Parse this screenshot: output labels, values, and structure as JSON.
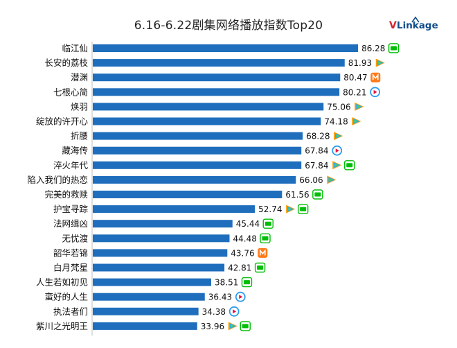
{
  "chart_data": {
    "type": "bar",
    "orientation": "horizontal",
    "title": "6.16-6.22剧集网络播放指数Top20",
    "categories": [
      "临江仙",
      "长安的荔枝",
      "潜渊",
      "七根心简",
      "焕羽",
      "绽放的许开心",
      "折腰",
      "藏海传",
      "淬火年代",
      "陷入我们的热恋",
      "完美的救赎",
      "护宝寻踪",
      "法网缉凶",
      "无忧渡",
      "韶华若锦",
      "白月梵星",
      "人生若如初见",
      "蛮好的人生",
      "执法者们",
      "紫川之光明王"
    ],
    "values": [
      86.28,
      81.93,
      80.47,
      80.21,
      75.06,
      74.18,
      68.28,
      67.84,
      67.84,
      66.06,
      61.56,
      52.74,
      45.44,
      44.48,
      43.76,
      42.81,
      38.51,
      36.43,
      34.38,
      33.96
    ],
    "value_labels": [
      "86.28",
      "81.93",
      "80.47",
      "80.21",
      "75.06",
      "74.18",
      "68.28",
      "67.84",
      "67.84",
      "66.06",
      "61.56",
      "52.74",
      "45.44",
      "44.48",
      "43.76",
      "42.81",
      "38.51",
      "36.43",
      "34.38",
      "33.96"
    ],
    "platforms": [
      [
        "iqiyi"
      ],
      [
        "tencent"
      ],
      [
        "mango"
      ],
      [
        "youku"
      ],
      [
        "tencent"
      ],
      [
        "tencent"
      ],
      [
        "tencent"
      ],
      [
        "youku"
      ],
      [
        "tencent",
        "iqiyi"
      ],
      [
        "tencent"
      ],
      [
        "iqiyi"
      ],
      [
        "tencent",
        "iqiyi"
      ],
      [
        "iqiyi"
      ],
      [
        "iqiyi"
      ],
      [
        "mango"
      ],
      [
        "iqiyi"
      ],
      [
        "iqiyi"
      ],
      [
        "youku"
      ],
      [
        "youku"
      ],
      [
        "tencent",
        "iqiyi"
      ]
    ],
    "xlim": [
      0,
      100
    ],
    "grid": false,
    "legend": "none",
    "bar_color": "#1f6ebd"
  },
  "brand": {
    "v": "V",
    "rest": "Linkage"
  },
  "platform_icons": {
    "iqiyi": {
      "glyph": "iQIYI",
      "color": "#00be06"
    },
    "tencent": {
      "color_a": "#ff9a00",
      "color_b": "#20b0f0",
      "color_c": "#5fd13a"
    },
    "youku": {
      "color_a": "#2b9cf0",
      "color_b": "#e3143c"
    },
    "mango": {
      "color": "#ff7a18"
    }
  }
}
